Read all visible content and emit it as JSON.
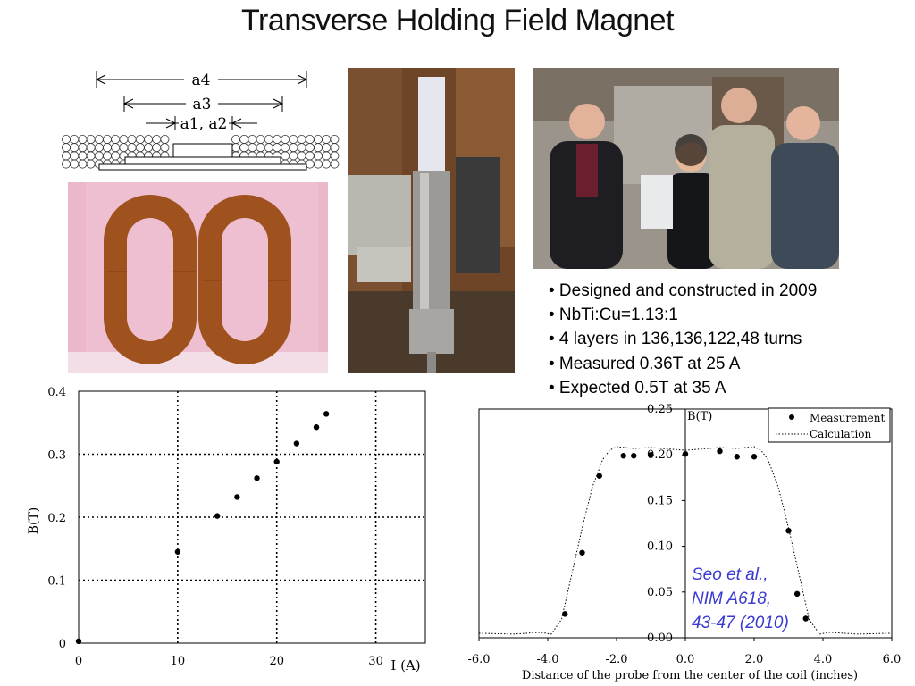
{
  "slide": {
    "title": "Transverse Holding Field Magnet",
    "bullets": [
      "• Designed and constructed in 2009",
      "• NbTi:Cu=1.13:1",
      "• 4 layers in 136,136,122,48 turns",
      "• Measured 0.36T at 25 A",
      "• Expected 0.5T at 35 A"
    ],
    "citation": [
      "Seo et al.,",
      "NIM A618,",
      "43-47 (2010)"
    ]
  },
  "diagram": {
    "labels": [
      "a4",
      "a3",
      "a1, a2"
    ]
  },
  "colors": {
    "coil": "#a0521e",
    "pink_background": "#e9b3c6",
    "citation_text": "#3a3ad0"
  },
  "chart_data": [
    {
      "type": "scatter",
      "xlabel": "I (A)",
      "ylabel": "B(T)",
      "xlim": [
        0,
        35
      ],
      "ylim": [
        0,
        0.4
      ],
      "xticks": [
        0,
        10,
        20,
        30
      ],
      "xtick_labels": [
        "0",
        "10",
        "20",
        "30"
      ],
      "yticks": [
        0,
        0.1,
        0.2,
        0.3,
        0.4
      ],
      "ytick_labels": [
        "0",
        "0.1",
        "0.2",
        "0.3",
        "0.4"
      ],
      "grid": true,
      "series": [
        {
          "x": [
            0,
            10,
            14,
            16,
            18,
            20,
            22,
            24,
            25
          ],
          "y": [
            0.003,
            0.145,
            0.202,
            0.232,
            0.262,
            0.288,
            0.317,
            0.343,
            0.364
          ]
        }
      ]
    },
    {
      "type": "scatter",
      "xlabel": "Distance of the probe from the center of  the coil (inches)",
      "ylabel": "B(T)",
      "xlim": [
        -6.0,
        6.0
      ],
      "ylim": [
        0.0,
        0.25
      ],
      "xticks": [
        -6,
        -4,
        -2,
        0,
        2,
        4,
        6
      ],
      "xtick_labels": [
        "-6.0",
        "-4.0",
        "-2.0",
        "0.0",
        "2.0",
        "4.0",
        "6.0"
      ],
      "yticks": [
        0,
        0.05,
        0.1,
        0.15,
        0.2,
        0.25
      ],
      "ytick_labels": [
        "0.00",
        "0.05",
        "0.10",
        "0.15",
        "0.20",
        "0.25"
      ],
      "legend": "top-right",
      "series": [
        {
          "name": "Measurement",
          "x": [
            -3.5,
            -3.0,
            -2.5,
            -1.8,
            -1.5,
            -1.0,
            0.0,
            1.0,
            1.5,
            2.0,
            3.0,
            3.25,
            3.5
          ],
          "y": [
            0.026,
            0.093,
            0.177,
            0.199,
            0.199,
            0.2,
            0.201,
            0.204,
            0.198,
            0.198,
            0.117,
            0.048,
            0.021
          ]
        },
        {
          "name": "Calculation",
          "x": [
            -6.0,
            -5.0,
            -4.2,
            -3.9,
            -3.6,
            -3.3,
            -3.0,
            -2.7,
            -2.4,
            -2.2,
            -2.0,
            -1.5,
            -1.0,
            0.0,
            1.0,
            1.5,
            2.0,
            2.2,
            2.4,
            2.7,
            3.0,
            3.3,
            3.6,
            3.9,
            4.2,
            5.0,
            6.0
          ],
          "y": [
            0.005,
            0.004,
            0.006,
            0.004,
            0.02,
            0.07,
            0.12,
            0.165,
            0.195,
            0.205,
            0.209,
            0.207,
            0.208,
            0.205,
            0.208,
            0.207,
            0.209,
            0.205,
            0.195,
            0.165,
            0.12,
            0.07,
            0.02,
            0.004,
            0.006,
            0.004,
            0.005
          ]
        }
      ]
    }
  ]
}
